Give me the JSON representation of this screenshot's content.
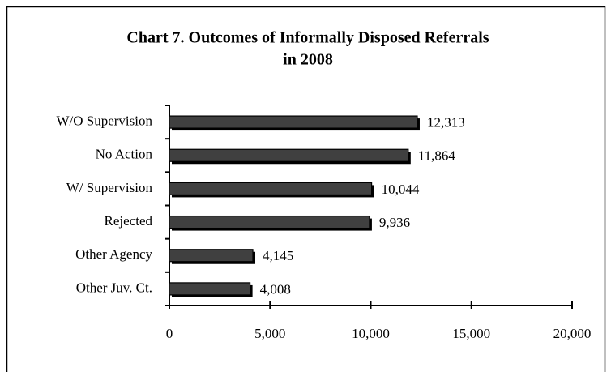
{
  "chart_data": {
    "type": "hbar",
    "title": [
      "Chart 7.  Outcomes of Informally Disposed Referrals",
      "in 2008"
    ],
    "categories": [
      "W/O Supervision",
      "No Action",
      "W/ Supervision",
      "Rejected",
      "Other Agency",
      "Other Juv. Ct."
    ],
    "values": [
      12313,
      11864,
      10044,
      9936,
      4145,
      4008
    ],
    "value_labels": [
      "12,313",
      "11,864",
      "10,044",
      "9,936",
      "4,145",
      "4,008"
    ],
    "color": "#404040",
    "xlim": [
      0,
      20000
    ],
    "xticks": [
      0,
      {
        "value": 5000,
        "label": "5,000"
      },
      {
        "value": 10000,
        "label": "10,000"
      },
      {
        "value": 15000,
        "label": "15,000"
      },
      {
        "value": 20000,
        "label": "20,000"
      }
    ],
    "grid": false
  }
}
